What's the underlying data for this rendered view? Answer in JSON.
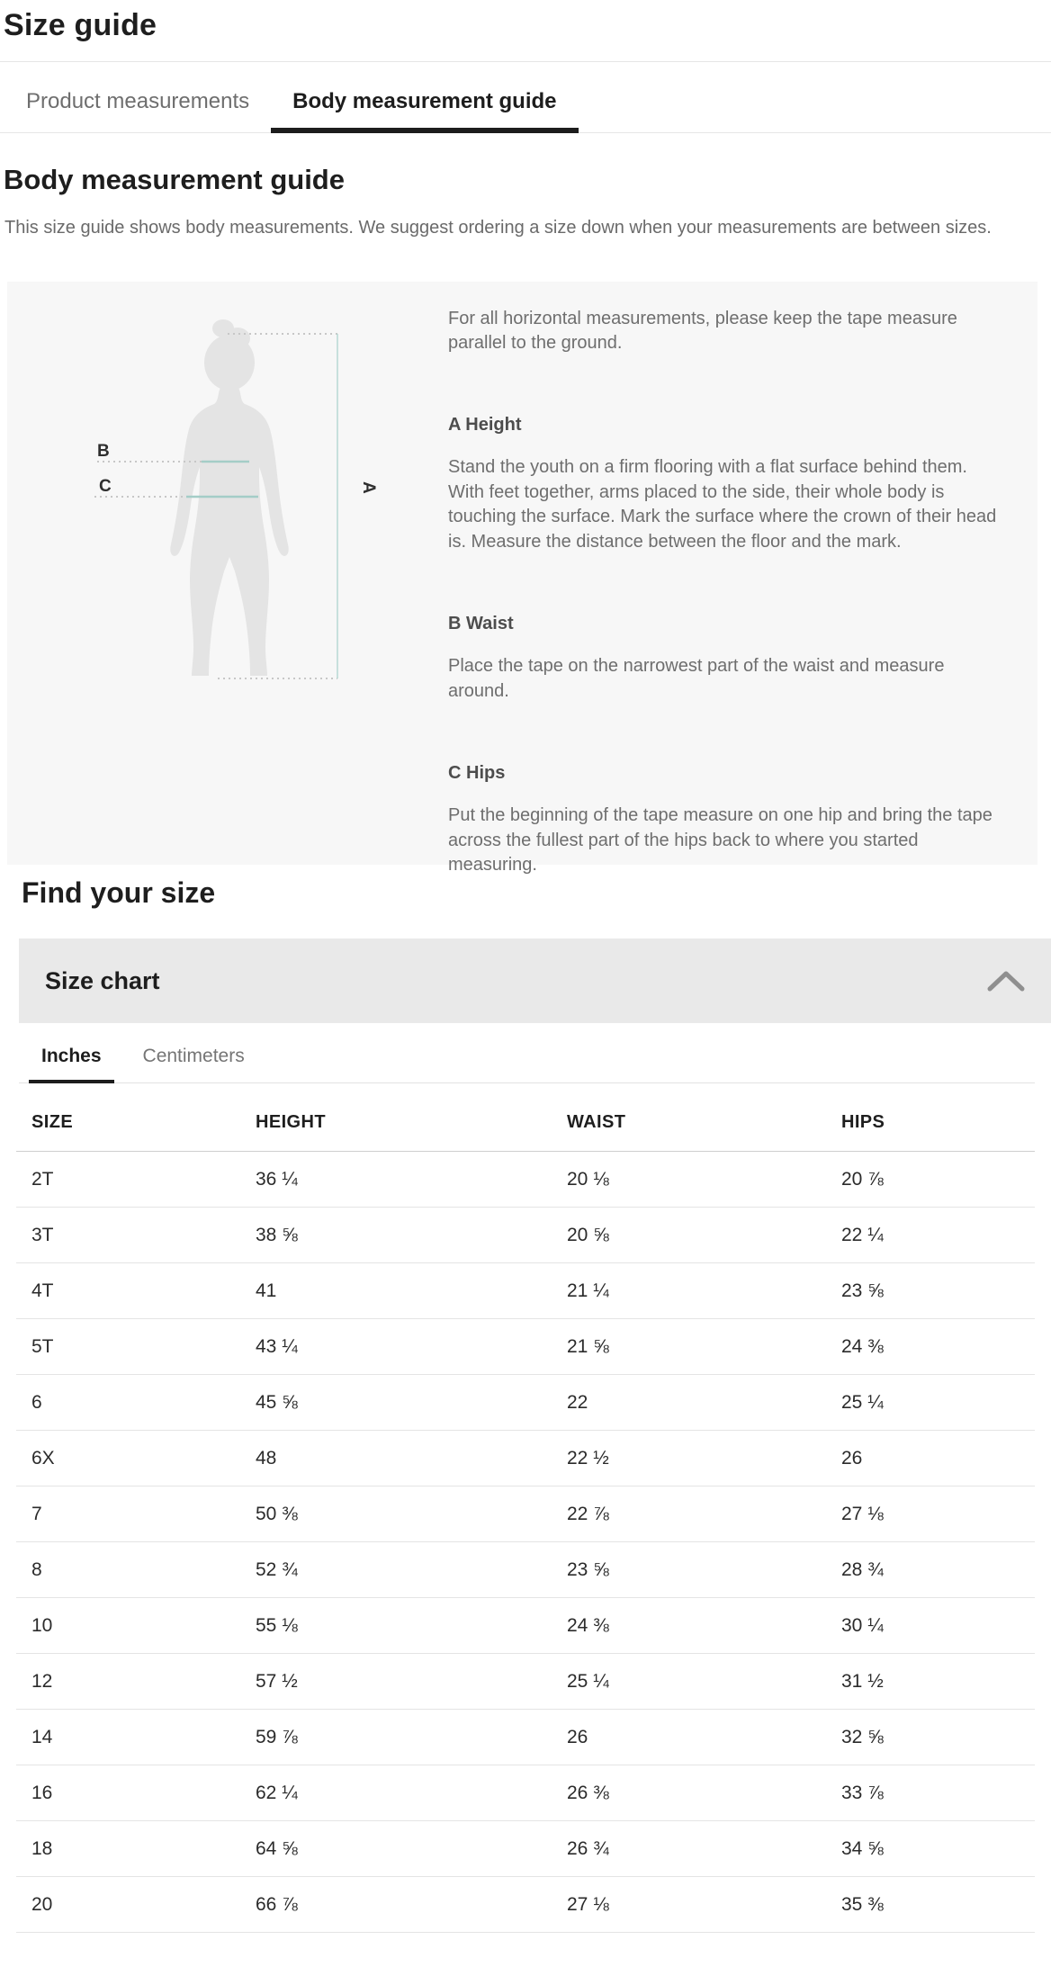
{
  "page": {
    "title": "Size guide"
  },
  "tabs": {
    "items": [
      {
        "label": "Product measurements",
        "active": false
      },
      {
        "label": "Body measurement guide",
        "active": true
      }
    ]
  },
  "guide": {
    "heading": "Body measurement guide",
    "intro": "This size guide shows body measurements. We suggest ordering a size down when your measurements are between sizes.",
    "note": "For all horizontal measurements, please keep the tape measure parallel to the ground.",
    "diagram_labels": {
      "a": "A",
      "b": "B",
      "c": "C"
    },
    "sections": [
      {
        "label": "A Height",
        "text": "Stand the youth on a firm flooring with a flat surface behind them. With feet together, arms placed to the side, their whole body is touching the surface. Mark the surface where the crown of their head is. Measure the distance between the floor and the mark."
      },
      {
        "label": "B Waist",
        "text": "Place the tape on the narrowest part of the waist and measure around."
      },
      {
        "label": "C Hips",
        "text": "Put the beginning of the tape measure on one hip and bring the tape across the fullest part of the hips back to where you started measuring."
      }
    ]
  },
  "find": {
    "heading": "Find your size"
  },
  "size_chart": {
    "title": "Size chart",
    "collapse_icon": "chevron-up",
    "unit_tabs": [
      {
        "label": "Inches",
        "active": true
      },
      {
        "label": "Centimeters",
        "active": false
      }
    ]
  },
  "size_table": {
    "columns": [
      "SIZE",
      "HEIGHT",
      "WAIST",
      "HIPS"
    ],
    "rows": [
      [
        "2T",
        "36 ¼",
        "20 ⅛",
        "20 ⅞"
      ],
      [
        "3T",
        "38 ⅝",
        "20 ⅝",
        "22 ¼"
      ],
      [
        "4T",
        "41",
        "21 ¼",
        "23 ⅝"
      ],
      [
        "5T",
        "43 ¼",
        "21 ⅝",
        "24 ⅜"
      ],
      [
        "6",
        "45 ⅝",
        "22",
        "25 ¼"
      ],
      [
        "6X",
        "48",
        "22 ½",
        "26"
      ],
      [
        "7",
        "50 ⅜",
        "22 ⅞",
        "27 ⅛"
      ],
      [
        "8",
        "52 ¾",
        "23 ⅝",
        "28 ¾"
      ],
      [
        "10",
        "55 ⅛",
        "24 ⅜",
        "30 ¼"
      ],
      [
        "12",
        "57 ½",
        "25 ¼",
        "31 ½"
      ],
      [
        "14",
        "59 ⅞",
        "26",
        "32 ⅝"
      ],
      [
        "16",
        "62 ¼",
        "26 ⅜",
        "33 ⅞"
      ],
      [
        "18",
        "64 ⅝",
        "26 ¾",
        "34 ⅝"
      ],
      [
        "20",
        "66 ⅞",
        "27 ⅛",
        "35 ⅜"
      ]
    ]
  },
  "colors": {
    "accent_teal": "#a4cdc7",
    "dotted_line": "#c7c7c7",
    "guide_box_bg": "#f7f7f7",
    "silhouette": "#e4e4e4",
    "panel_bg": "#e9e9e9",
    "muted_text": "#6a6a6a",
    "active_tab_underline": "#1d1d1d"
  }
}
